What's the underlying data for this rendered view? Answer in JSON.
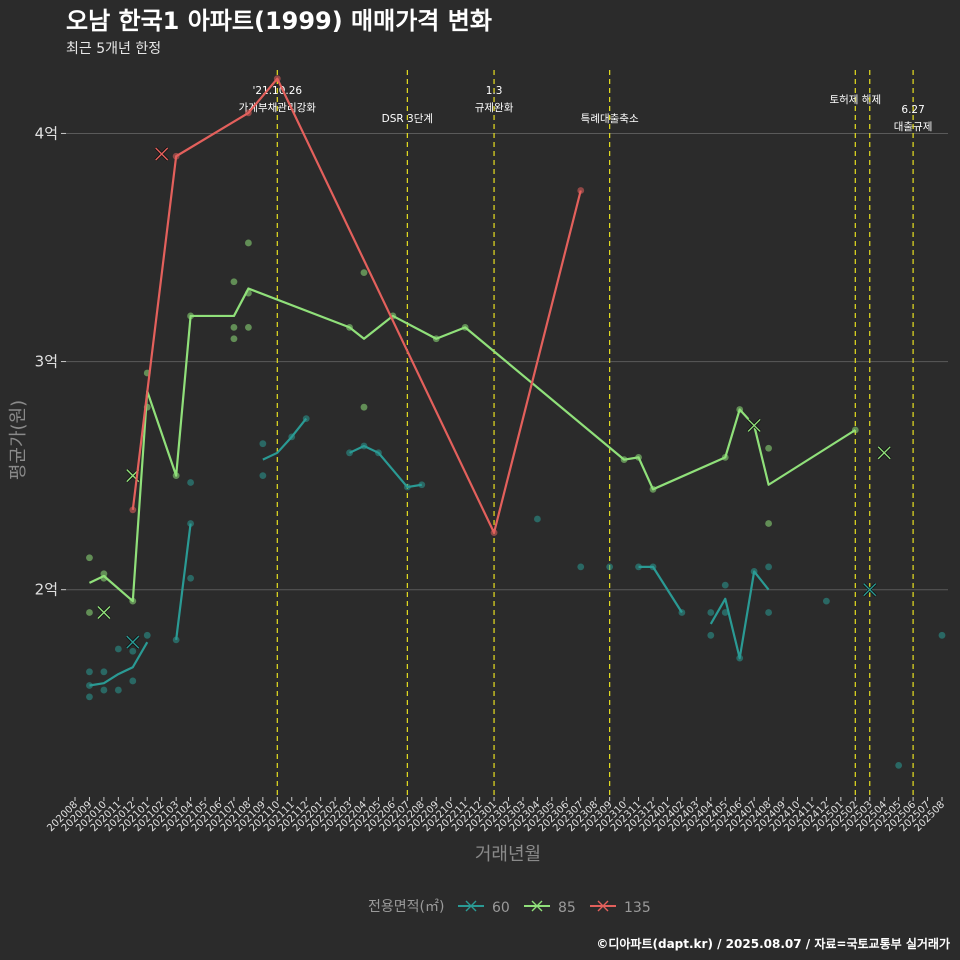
{
  "chart_data": {
    "type": "line",
    "title": "오남 한국1 아파트(1999) 매매가격 변화",
    "subtitle": "최근 5개년 한정",
    "xlabel": "거래년월",
    "ylabel": "평균가(원)",
    "caption": "©디아파트(dapt.kr) / 2025.08.07 / 자료=국토교통부 실거래가",
    "legend_title": "전용면적(㎡)",
    "ylim": [
      110000000,
      430000000
    ],
    "y_ticks": [
      {
        "value": 200000000,
        "label": "2억"
      },
      {
        "value": 300000000,
        "label": "3억"
      },
      {
        "value": 400000000,
        "label": "4억"
      }
    ],
    "x_categories": [
      "202008",
      "202009",
      "202010",
      "202011",
      "202012",
      "202101",
      "202102",
      "202103",
      "202104",
      "202105",
      "202106",
      "202107",
      "202108",
      "202109",
      "202110",
      "202111",
      "202112",
      "202201",
      "202202",
      "202203",
      "202204",
      "202205",
      "202206",
      "202207",
      "202208",
      "202209",
      "202210",
      "202211",
      "202212",
      "202301",
      "202302",
      "202303",
      "202304",
      "202305",
      "202306",
      "202307",
      "202308",
      "202309",
      "202310",
      "202311",
      "202312",
      "202401",
      "202402",
      "202403",
      "202404",
      "202405",
      "202406",
      "202407",
      "202408",
      "202409",
      "202410",
      "202411",
      "202412",
      "202501",
      "202502",
      "202503",
      "202504",
      "202505",
      "202506",
      "202507",
      "202508"
    ],
    "events": [
      {
        "x": "202110",
        "lines": [
          "'21.10.26",
          "가계부채관리강화"
        ],
        "row": 1
      },
      {
        "x": "202207",
        "lines": [
          "DSR 3단계"
        ],
        "row": 2
      },
      {
        "x": "202301",
        "lines": [
          "1.3",
          "규제완화"
        ],
        "row": 1
      },
      {
        "x": "202309",
        "lines": [
          "특례대출축소"
        ],
        "row": 2
      },
      {
        "x": "202502",
        "lines": [
          "토허제 해제"
        ],
        "row": 1
      },
      {
        "x": "202503",
        "lines": [],
        "row": 1
      },
      {
        "x": "202506",
        "lines": [
          "6.27",
          "대출규제"
        ],
        "row": 2
      }
    ],
    "series": [
      {
        "name": "60",
        "color": "#2a9a94",
        "line": [
          [
            "202009",
            158000000
          ],
          [
            "202010",
            159000000
          ],
          [
            "202011",
            163000000
          ],
          [
            "202012",
            166000000
          ],
          [
            "202101",
            177000000
          ],
          null,
          [
            "202103",
            178000000
          ],
          [
            "202104",
            229000000
          ],
          null,
          [
            "202109",
            257000000
          ],
          [
            "202110",
            260000000
          ],
          [
            "202111",
            267000000
          ],
          [
            "202112",
            275000000
          ],
          null,
          [
            "202203",
            260000000
          ],
          [
            "202204",
            263000000
          ],
          [
            "202205",
            260000000
          ],
          [
            "202207",
            245000000
          ],
          [
            "202208",
            246000000
          ],
          null,
          [
            "202311",
            210000000
          ],
          [
            "202312",
            210000000
          ],
          [
            "202402",
            190000000
          ],
          null,
          [
            "202404",
            185000000
          ],
          [
            "202405",
            196000000
          ],
          [
            "202406",
            170000000
          ],
          [
            "202407",
            208000000
          ],
          [
            "202408",
            200000000
          ]
        ],
        "points": [
          [
            "202009",
            164000000
          ],
          [
            "202009",
            158000000
          ],
          [
            "202009",
            153000000
          ],
          [
            "202010",
            164000000
          ],
          [
            "202010",
            156000000
          ],
          [
            "202011",
            174000000
          ],
          [
            "202011",
            156000000
          ],
          [
            "202012",
            173000000
          ],
          [
            "202012",
            160000000
          ],
          [
            "202101",
            180000000
          ],
          [
            "202103",
            178000000
          ],
          [
            "202104",
            247000000
          ],
          [
            "202104",
            229000000
          ],
          [
            "202104",
            205000000
          ],
          [
            "202109",
            264000000
          ],
          [
            "202109",
            250000000
          ],
          [
            "202111",
            267000000
          ],
          [
            "202112",
            275000000
          ],
          [
            "202203",
            260000000
          ],
          [
            "202204",
            263000000
          ],
          [
            "202205",
            260000000
          ],
          [
            "202207",
            245000000
          ],
          [
            "202208",
            246000000
          ],
          [
            "202304",
            231000000
          ],
          [
            "202307",
            210000000
          ],
          [
            "202309",
            210000000
          ],
          [
            "202311",
            210000000
          ],
          [
            "202312",
            210000000
          ],
          [
            "202402",
            190000000
          ],
          [
            "202404",
            190000000
          ],
          [
            "202404",
            180000000
          ],
          [
            "202405",
            202000000
          ],
          [
            "202405",
            190000000
          ],
          [
            "202406",
            170000000
          ],
          [
            "202407",
            208000000
          ],
          [
            "202408",
            210000000
          ],
          [
            "202408",
            190000000
          ],
          [
            "202412",
            195000000
          ],
          [
            "202503",
            200000000
          ],
          [
            "202505",
            123000000
          ],
          [
            "202508",
            180000000
          ]
        ],
        "crosses": [
          [
            "202012",
            177000000
          ],
          [
            "202503",
            200000000
          ]
        ]
      },
      {
        "name": "85",
        "color": "#90e07a",
        "line": [
          [
            "202009",
            203000000
          ],
          [
            "202010",
            206000000
          ],
          [
            "202012",
            195000000
          ],
          [
            "202101",
            287000000
          ],
          [
            "202103",
            250000000
          ],
          [
            "202104",
            320000000
          ],
          [
            "202107",
            320000000
          ],
          [
            "202108",
            332000000
          ],
          [
            "202203",
            315000000
          ],
          [
            "202204",
            310000000
          ],
          [
            "202206",
            320000000
          ],
          [
            "202209",
            310000000
          ],
          [
            "202211",
            315000000
          ],
          [
            "202310",
            257000000
          ],
          [
            "202311",
            258000000
          ],
          [
            "202312",
            244000000
          ],
          [
            "202405",
            258000000
          ],
          [
            "202406",
            279000000
          ],
          [
            "202407",
            272000000
          ],
          [
            "202408",
            246000000
          ],
          [
            "202502",
            270000000
          ]
        ],
        "points": [
          [
            "202009",
            214000000
          ],
          [
            "202009",
            190000000
          ],
          [
            "202010",
            207000000
          ],
          [
            "202010",
            205000000
          ],
          [
            "202012",
            195000000
          ],
          [
            "202101",
            295000000
          ],
          [
            "202101",
            280000000
          ],
          [
            "202103",
            250000000
          ],
          [
            "202104",
            320000000
          ],
          [
            "202107",
            335000000
          ],
          [
            "202107",
            315000000
          ],
          [
            "202107",
            310000000
          ],
          [
            "202108",
            352000000
          ],
          [
            "202108",
            330000000
          ],
          [
            "202108",
            315000000
          ],
          [
            "202203",
            315000000
          ],
          [
            "202204",
            339000000
          ],
          [
            "202204",
            280000000
          ],
          [
            "202206",
            320000000
          ],
          [
            "202209",
            310000000
          ],
          [
            "202211",
            315000000
          ],
          [
            "202310",
            257000000
          ],
          [
            "202311",
            258000000
          ],
          [
            "202312",
            244000000
          ],
          [
            "202405",
            258000000
          ],
          [
            "202406",
            279000000
          ],
          [
            "202408",
            262000000
          ],
          [
            "202408",
            229000000
          ],
          [
            "202502",
            270000000
          ]
        ],
        "crosses": [
          [
            "202010",
            190000000
          ],
          [
            "202012",
            250000000
          ],
          [
            "202407",
            272000000
          ],
          [
            "202504",
            260000000
          ]
        ]
      },
      {
        "name": "135",
        "color": "#e3605c",
        "line": [
          [
            "202012",
            235000000
          ],
          [
            "202103",
            390000000
          ],
          [
            "202108",
            409000000
          ],
          [
            "202110",
            424000000
          ],
          [
            "202301",
            225000000
          ],
          [
            "202307",
            375000000
          ]
        ],
        "points": [
          [
            "202012",
            235000000
          ],
          [
            "202103",
            390000000
          ],
          [
            "202108",
            409000000
          ],
          [
            "202110",
            424000000
          ],
          [
            "202301",
            225000000
          ],
          [
            "202307",
            375000000
          ]
        ],
        "crosses": [
          [
            "202102",
            391000000
          ]
        ]
      }
    ]
  }
}
